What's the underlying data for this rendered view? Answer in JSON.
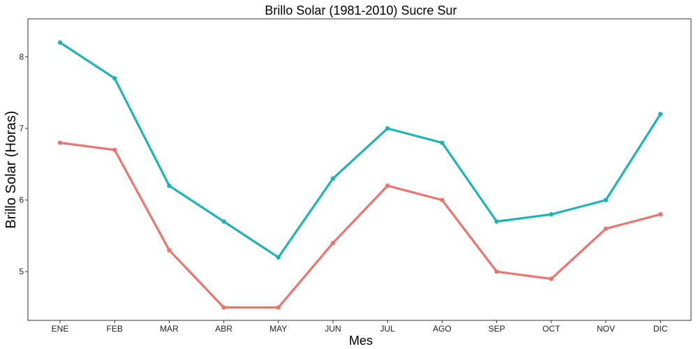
{
  "chart_data": {
    "type": "line",
    "title": "Brillo Solar (1981-2010)  Sucre Sur",
    "xlabel": "Mes",
    "ylabel": "Brillo Solar (Horas)",
    "categories": [
      "ENE",
      "FEB",
      "MAR",
      "ABR",
      "MAY",
      "JUN",
      "JUL",
      "AGO",
      "SEP",
      "OCT",
      "NOV",
      "DIC"
    ],
    "y_ticks": [
      5,
      6,
      7,
      8
    ],
    "ylim": [
      4.32,
      8.53
    ],
    "grid": false,
    "legend": "none",
    "series": [
      {
        "color": "#20B2B5",
        "values": [
          8.2,
          7.7,
          6.2,
          5.7,
          5.2,
          6.3,
          7.0,
          6.8,
          5.7,
          5.8,
          6.0,
          7.2
        ]
      },
      {
        "color": "#E8766E",
        "values": [
          6.8,
          6.7,
          5.3,
          4.5,
          4.5,
          5.4,
          6.2,
          6.0,
          5.0,
          4.9,
          5.6,
          5.8
        ]
      }
    ]
  }
}
